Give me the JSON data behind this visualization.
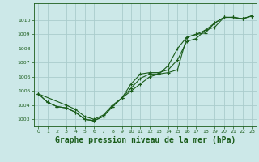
{
  "bg_color": "#cce8e8",
  "grid_color": "#aacccc",
  "line_color": "#1a5c1a",
  "marker_color": "#1a5c1a",
  "title": "Graphe pression niveau de la mer (hPa)",
  "title_fontsize": 7,
  "ylim": [
    1002.5,
    1011.2
  ],
  "xlim": [
    -0.5,
    23.5
  ],
  "yticks": [
    1003,
    1004,
    1005,
    1006,
    1007,
    1008,
    1009,
    1010
  ],
  "xticks": [
    0,
    1,
    2,
    3,
    4,
    5,
    6,
    7,
    8,
    9,
    10,
    11,
    12,
    13,
    14,
    15,
    16,
    17,
    18,
    19,
    20,
    21,
    22,
    23
  ],
  "series1_x": [
    0,
    1,
    2,
    3,
    4,
    5,
    6,
    7,
    8,
    9,
    10,
    11,
    12,
    13,
    14,
    15,
    16,
    17,
    18,
    19,
    20,
    21,
    22,
    23
  ],
  "series1_y": [
    1004.8,
    1004.2,
    1003.9,
    1003.8,
    1003.5,
    1003.0,
    1002.9,
    1003.2,
    1003.9,
    1004.5,
    1005.5,
    1006.2,
    1006.3,
    1006.3,
    1006.5,
    1007.2,
    1008.5,
    1008.7,
    1009.3,
    1009.8,
    1010.2,
    1010.2,
    1010.1,
    1010.3
  ],
  "series2_x": [
    0,
    1,
    2,
    3,
    4,
    5,
    6,
    7,
    8,
    9,
    10,
    11,
    12,
    13,
    14,
    15,
    16,
    17,
    18,
    19,
    20,
    21,
    22,
    23
  ],
  "series2_y": [
    1004.8,
    1004.2,
    1003.9,
    1003.8,
    1003.5,
    1003.0,
    1002.9,
    1003.2,
    1003.9,
    1004.5,
    1005.0,
    1005.5,
    1006.0,
    1006.2,
    1006.8,
    1008.0,
    1008.8,
    1009.0,
    1009.3,
    1009.5,
    1010.2,
    1010.2,
    1010.1,
    1010.3
  ],
  "series3_x": [
    0,
    3,
    4,
    5,
    6,
    7,
    8,
    9,
    10,
    11,
    12,
    13,
    14,
    15,
    16,
    17,
    18,
    19,
    20,
    21,
    22,
    23
  ],
  "series3_y": [
    1004.8,
    1004.0,
    1003.7,
    1003.2,
    1003.0,
    1003.3,
    1004.0,
    1004.5,
    1005.2,
    1005.9,
    1006.2,
    1006.2,
    1006.3,
    1006.5,
    1008.8,
    1009.0,
    1009.1,
    1009.8,
    1010.2,
    1010.2,
    1010.1,
    1010.3
  ]
}
